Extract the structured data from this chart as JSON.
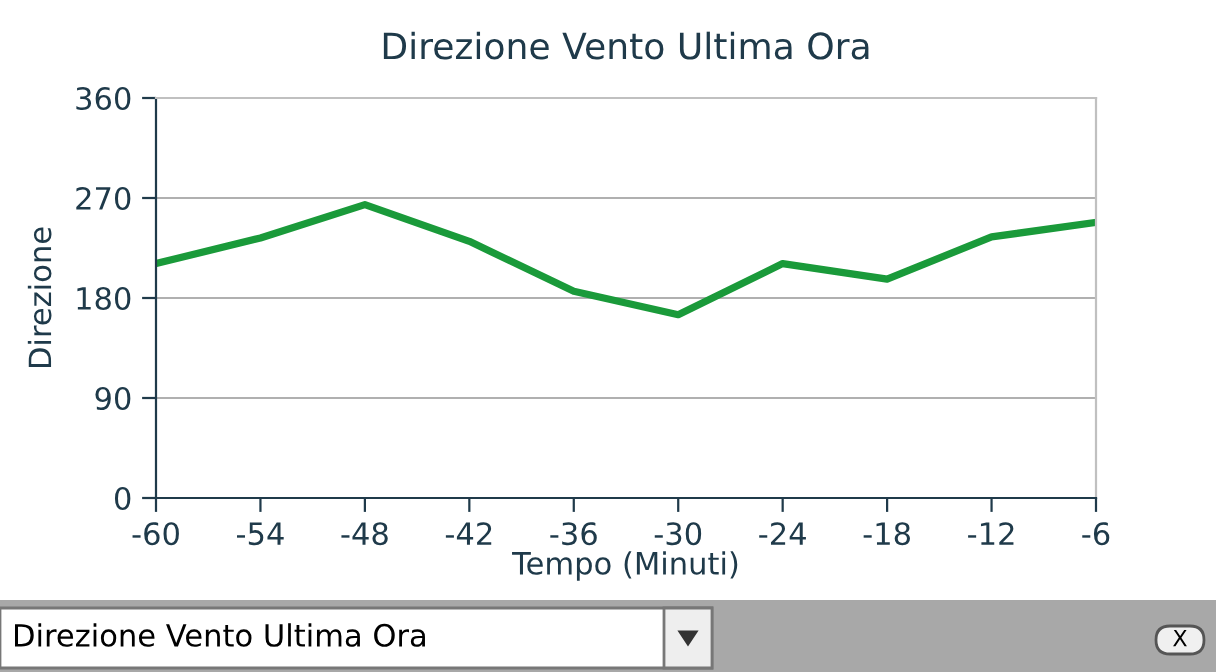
{
  "chart_data": {
    "type": "line",
    "title": "Direzione Vento Ultima Ora",
    "xlabel": "Tempo (Minuti)",
    "ylabel": "Direzione",
    "x": [
      -60,
      -54,
      -48,
      -42,
      -36,
      -30,
      -24,
      -18,
      -12,
      -6
    ],
    "series": [
      {
        "color": "#1a9a3a",
        "values": [
          211,
          234,
          264,
          231,
          186,
          165,
          211,
          197,
          235,
          248
        ]
      }
    ],
    "xlim": [
      -60,
      -6
    ],
    "xticks": [
      -60,
      -54,
      -48,
      -42,
      -36,
      -30,
      -24,
      -18,
      -12,
      -6
    ],
    "ylim": [
      0,
      360
    ],
    "yticks": [
      0,
      90,
      180,
      270,
      360
    ],
    "grid": "y",
    "legend": false,
    "marker": "none",
    "line_style": "solid",
    "annotations": [
      "Direzione Vento Ultima Ora",
      "X"
    ]
  }
}
